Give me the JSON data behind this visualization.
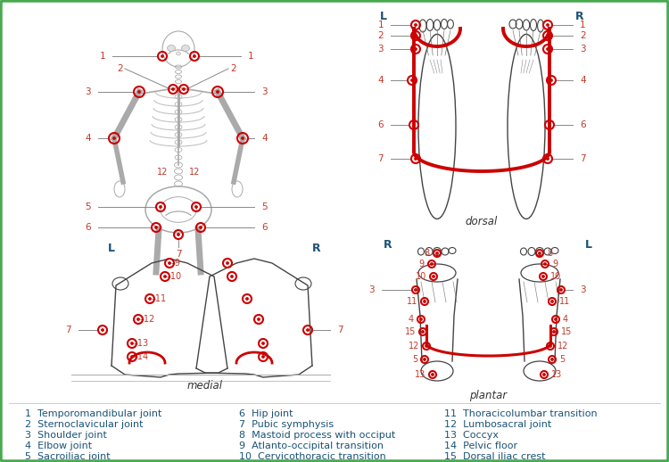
{
  "background_color": "#ffffff",
  "border_color": "#4aaa50",
  "legend_items_col1": [
    "1  Temporomandibular joint",
    "2  Sternoclavicular joint",
    "3  Shoulder joint",
    "4  Elbow joint",
    "5  Sacroiliac joint"
  ],
  "legend_items_col2": [
    "6  Hip joint",
    "7  Pubic symphysis",
    "8  Mastoid process with occiput",
    "9  Atlanto-occipital transition",
    "10  Cervicothoracic transition"
  ],
  "legend_items_col3": [
    "11  Thoracicolumbar transition",
    "12  Lumbosacral joint",
    "13  Coccyx",
    "14  Pelvic floor",
    "15  Dorsal iliac crest"
  ],
  "num_color": "#c0392b",
  "lbl_color": "#1a5276",
  "line_color": "#888888",
  "font_size_legend": 8.0,
  "red_color": "#cc0000",
  "skeleton_color": "#aaaaaa",
  "foot_color": "#444444"
}
